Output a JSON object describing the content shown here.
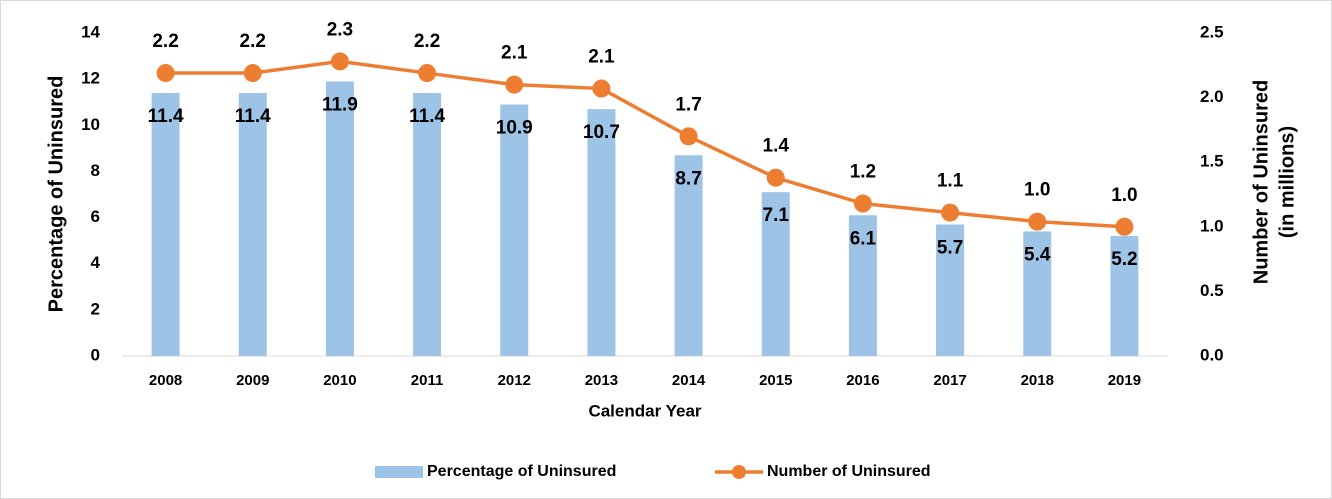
{
  "chart_data": {
    "type": "bar",
    "x_label": "Calendar Year",
    "y_label": "Percentage of Uninsured",
    "y2_label": [
      "Number of Uninsured",
      "(in millions)"
    ],
    "categories": [
      "2008",
      "2009",
      "2010",
      "2011",
      "2012",
      "2013",
      "2014",
      "2015",
      "2016",
      "2017",
      "2018",
      "2019"
    ],
    "series": [
      {
        "name": "Percentage of Uninsured",
        "type": "bar",
        "color": "#9dc3e6",
        "values": [
          11.4,
          11.4,
          11.9,
          11.4,
          10.9,
          10.7,
          8.7,
          7.1,
          6.1,
          5.7,
          5.4,
          5.2
        ]
      },
      {
        "name": "Number of Uninsured",
        "type": "line",
        "axis": "y2",
        "color": "#ed7d31",
        "values": [
          2.19,
          2.19,
          2.28,
          2.19,
          2.1,
          2.07,
          1.7,
          1.38,
          1.18,
          1.11,
          1.04,
          1.0
        ],
        "value_labels": [
          "2.2",
          "2.2",
          "2.3",
          "2.2",
          "2.1",
          "2.1",
          "1.7",
          "1.4",
          "1.2",
          "1.1",
          "1.0",
          "1.0"
        ]
      }
    ],
    "ylim": [
      0,
      14
    ],
    "yticks": [
      0,
      2,
      4,
      6,
      8,
      10,
      12,
      14
    ],
    "y2lim": [
      0,
      2.5
    ],
    "y2ticks": [
      {
        "value": 0,
        "label": "0.0"
      },
      0.5,
      {
        "value": 1,
        "label": "1.0"
      },
      1.5,
      {
        "value": 2,
        "label": "2.0"
      },
      2.5
    ],
    "legend": "bottom"
  }
}
